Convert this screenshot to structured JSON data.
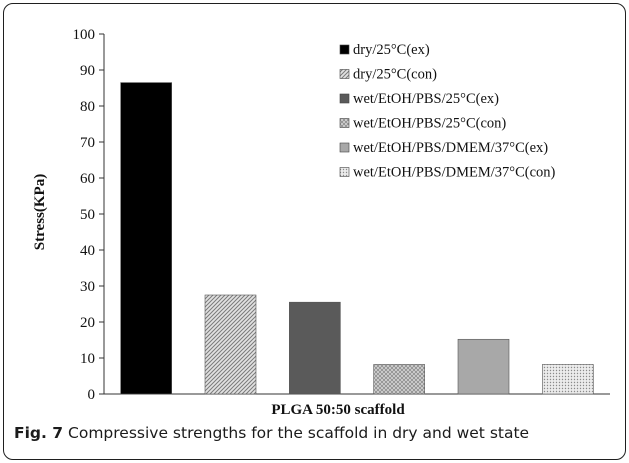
{
  "chart_data": {
    "type": "bar",
    "ylabel": "Stress(KPa)",
    "xlabel": "PLGA 50:50 scaffold",
    "ylim": [
      0,
      100
    ],
    "yticks": [
      0,
      10,
      20,
      30,
      40,
      50,
      60,
      70,
      80,
      90,
      100
    ],
    "series": [
      {
        "name": "dry/25°C(ex)",
        "value": 86.5,
        "fill": "#000000",
        "pattern": "solid"
      },
      {
        "name": "dry/25°C(con)",
        "value": 27.5,
        "fill": "#cfcfcf",
        "pattern": "diagonal"
      },
      {
        "name": "wet/EtOH/PBS/25°C(ex)",
        "value": 25.5,
        "fill": "#5a5a5a",
        "pattern": "solid"
      },
      {
        "name": "wet/EtOH/PBS/25°C(con)",
        "value": 8.2,
        "fill": "#c8c8c8",
        "pattern": "crosshatch"
      },
      {
        "name": "wet/EtOH/PBS/DMEM/37°C(ex)",
        "value": 15.2,
        "fill": "#a8a8a8",
        "pattern": "solid"
      },
      {
        "name": "wet/EtOH/PBS/DMEM/37°C(con)",
        "value": 8.2,
        "fill": "#dcdcdc",
        "pattern": "dots"
      }
    ],
    "legend_position": "top-right",
    "grid": false
  },
  "caption": {
    "label": "Fig. 7",
    "text": "Compressive strengths for the scaffold in dry and wet state"
  }
}
